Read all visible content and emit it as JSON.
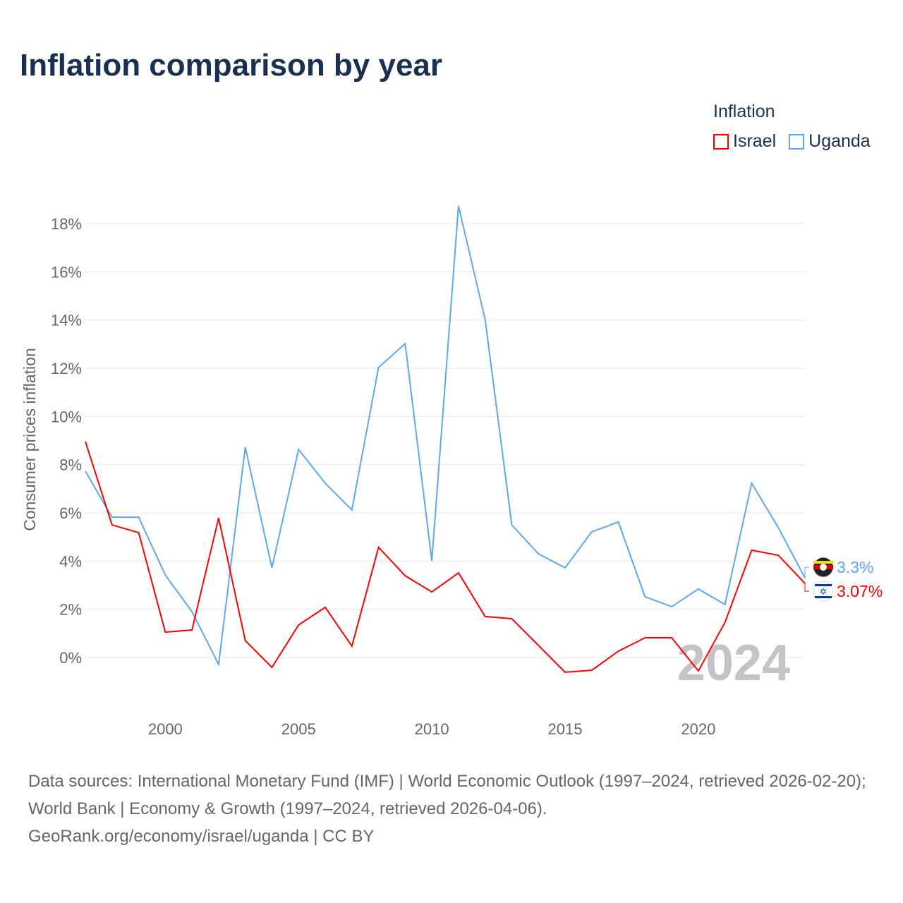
{
  "title": "Inflation comparison by year",
  "legend": {
    "title": "Inflation",
    "items": [
      {
        "label": "Israel",
        "color": "#ff0000"
      },
      {
        "label": "Uganda",
        "color": "#5ea8ee"
      }
    ]
  },
  "source": {
    "line1": "Data sources: International Monetary Fund (IMF) | World Economic Outlook (1997–2024, retrieved 2026-02-20); World Bank | Economy & Growth (1997–2024, retrieved 2026-04-06).",
    "line2": "GeoRank.org/economy/israel/uganda | CC BY"
  },
  "chart_data": {
    "type": "line",
    "title": "Inflation comparison by year",
    "ylabel": "Consumer prices inflation",
    "xlabel": "",
    "year_watermark": "2024",
    "ylim": [
      -2,
      19
    ],
    "yticks": [
      0,
      2,
      4,
      6,
      8,
      10,
      12,
      14,
      16,
      18
    ],
    "ytick_labels": [
      "0%",
      "2%",
      "4%",
      "6%",
      "8%",
      "10%",
      "12%",
      "14%",
      "16%",
      "18%"
    ],
    "xticks": [
      2000,
      2005,
      2010,
      2015,
      2020
    ],
    "xtick_labels": [
      "2000",
      "2005",
      "2010",
      "2015",
      "2020"
    ],
    "x": [
      1997,
      1998,
      1999,
      2000,
      2001,
      2002,
      2003,
      2004,
      2005,
      2006,
      2007,
      2008,
      2009,
      2010,
      2011,
      2012,
      2013,
      2014,
      2015,
      2016,
      2017,
      2018,
      2019,
      2020,
      2021,
      2022,
      2023,
      2024
    ],
    "series": [
      {
        "name": "Uganda",
        "color": "#5ea8ee",
        "end_label": "3.3%",
        "values": [
          7.73,
          5.82,
          5.82,
          3.42,
          1.9,
          -0.29,
          8.72,
          3.72,
          8.63,
          7.23,
          6.12,
          12.03,
          13.02,
          4.01,
          18.73,
          14.02,
          5.5,
          4.3,
          3.72,
          5.21,
          5.62,
          2.52,
          2.11,
          2.84,
          2.2,
          7.23,
          5.39,
          3.3
        ]
      },
      {
        "name": "Israel",
        "color": "#ff0000",
        "end_label": "3.07%",
        "values": [
          8.96,
          5.5,
          5.18,
          1.05,
          1.14,
          5.79,
          0.7,
          -0.41,
          1.35,
          2.08,
          0.47,
          4.57,
          3.39,
          2.72,
          3.51,
          1.7,
          1.61,
          0.5,
          -0.61,
          -0.53,
          0.26,
          0.82,
          0.82,
          -0.56,
          1.46,
          4.45,
          4.24,
          3.07
        ]
      }
    ]
  }
}
